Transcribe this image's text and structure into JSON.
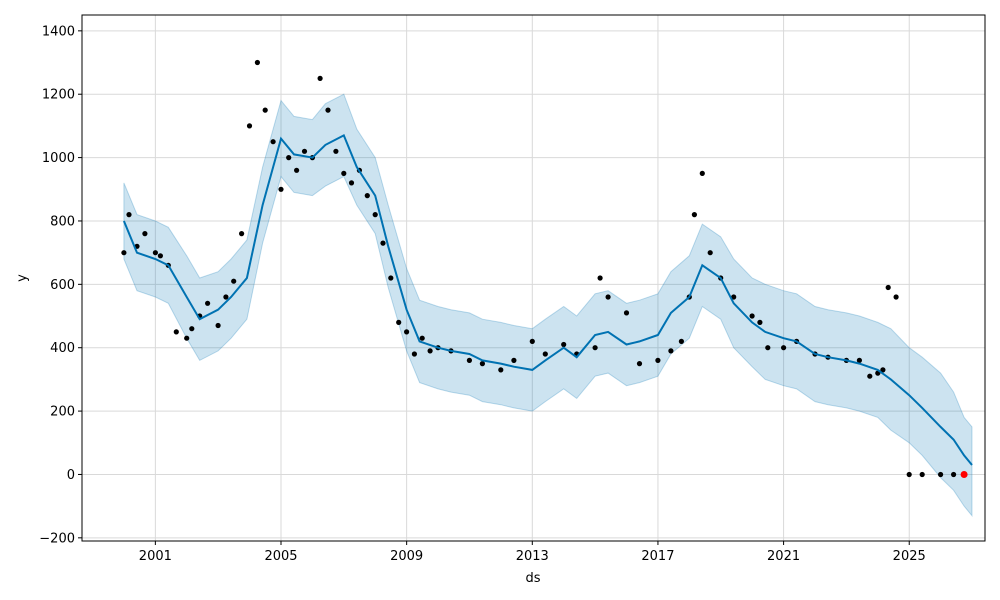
{
  "chart_data": {
    "type": "line",
    "title": "",
    "xlabel": "ds",
    "ylabel": "y",
    "xlim": [
      "1998-09-01",
      "2027-06-01"
    ],
    "ylim": [
      -210,
      1450
    ],
    "x_tick_labels": [
      "2001",
      "2005",
      "2009",
      "2013",
      "2017",
      "2021",
      "2025"
    ],
    "y_tick_labels": [
      "−200",
      "0",
      "200",
      "400",
      "600",
      "800",
      "1000",
      "1200",
      "1400"
    ],
    "grid": true,
    "legend": "none",
    "colors": {
      "forecast": "#0072B2",
      "uncertainty_band": "#0072B2",
      "observed": "#000000",
      "highlight": "#ff0000",
      "grid": "#d9d9d9"
    },
    "series": [
      {
        "role": "forecast",
        "x": [
          "2000-01-01",
          "2000-06-01",
          "2001-01-01",
          "2001-06-01",
          "2002-01-01",
          "2002-06-01",
          "2003-01-01",
          "2003-06-01",
          "2003-12-01",
          "2004-06-01",
          "2005-01-01",
          "2005-06-01",
          "2006-01-01",
          "2006-06-01",
          "2007-01-01",
          "2007-06-01",
          "2008-01-01",
          "2008-06-01",
          "2009-01-01",
          "2009-06-01",
          "2010-01-01",
          "2010-06-01",
          "2011-01-01",
          "2011-06-01",
          "2012-01-01",
          "2012-06-01",
          "2013-01-01",
          "2013-06-01",
          "2014-01-01",
          "2014-06-01",
          "2015-01-01",
          "2015-06-01",
          "2016-01-01",
          "2016-06-01",
          "2017-01-01",
          "2017-06-01",
          "2018-01-01",
          "2018-06-01",
          "2019-01-01",
          "2019-06-01",
          "2020-01-01",
          "2020-06-01",
          "2021-01-01",
          "2021-06-01",
          "2022-01-01",
          "2022-06-01",
          "2023-01-01",
          "2023-06-01",
          "2024-01-01",
          "2024-06-01",
          "2025-01-01",
          "2025-06-01",
          "2026-01-01",
          "2026-06-01",
          "2026-10-01",
          "2027-01-01"
        ],
        "y": [
          800,
          700,
          680,
          660,
          560,
          490,
          520,
          560,
          620,
          850,
          1060,
          1010,
          1000,
          1040,
          1070,
          970,
          880,
          720,
          520,
          420,
          400,
          390,
          380,
          360,
          350,
          340,
          330,
          360,
          400,
          370,
          440,
          450,
          410,
          420,
          440,
          510,
          560,
          660,
          620,
          540,
          480,
          450,
          430,
          420,
          380,
          370,
          360,
          350,
          330,
          300,
          250,
          210,
          150,
          110,
          60,
          30
        ]
      },
      {
        "role": "uncertainty_upper",
        "x": [
          "2000-01-01",
          "2000-06-01",
          "2001-01-01",
          "2001-06-01",
          "2002-01-01",
          "2002-06-01",
          "2003-01-01",
          "2003-06-01",
          "2003-12-01",
          "2004-06-01",
          "2005-01-01",
          "2005-06-01",
          "2006-01-01",
          "2006-06-01",
          "2007-01-01",
          "2007-06-01",
          "2008-01-01",
          "2008-06-01",
          "2009-01-01",
          "2009-06-01",
          "2010-01-01",
          "2010-06-01",
          "2011-01-01",
          "2011-06-01",
          "2012-01-01",
          "2012-06-01",
          "2013-01-01",
          "2013-06-01",
          "2014-01-01",
          "2014-06-01",
          "2015-01-01",
          "2015-06-01",
          "2016-01-01",
          "2016-06-01",
          "2017-01-01",
          "2017-06-01",
          "2018-01-01",
          "2018-06-01",
          "2019-01-01",
          "2019-06-01",
          "2020-01-01",
          "2020-06-01",
          "2021-01-01",
          "2021-06-01",
          "2022-01-01",
          "2022-06-01",
          "2023-01-01",
          "2023-06-01",
          "2024-01-01",
          "2024-06-01",
          "2025-01-01",
          "2025-06-01",
          "2026-01-01",
          "2026-06-01",
          "2026-10-01",
          "2027-01-01"
        ],
        "y": [
          920,
          820,
          800,
          780,
          690,
          620,
          640,
          680,
          740,
          970,
          1180,
          1130,
          1120,
          1170,
          1200,
          1090,
          1000,
          850,
          650,
          550,
          530,
          520,
          510,
          490,
          480,
          470,
          460,
          490,
          530,
          500,
          570,
          580,
          540,
          550,
          570,
          640,
          690,
          790,
          750,
          680,
          620,
          600,
          580,
          570,
          530,
          520,
          510,
          500,
          480,
          460,
          400,
          370,
          320,
          260,
          180,
          150
        ]
      },
      {
        "role": "uncertainty_lower",
        "x": [
          "2000-01-01",
          "2000-06-01",
          "2001-01-01",
          "2001-06-01",
          "2002-01-01",
          "2002-06-01",
          "2003-01-01",
          "2003-06-01",
          "2003-12-01",
          "2004-06-01",
          "2005-01-01",
          "2005-06-01",
          "2006-01-01",
          "2006-06-01",
          "2007-01-01",
          "2007-06-01",
          "2008-01-01",
          "2008-06-01",
          "2009-01-01",
          "2009-06-01",
          "2010-01-01",
          "2010-06-01",
          "2011-01-01",
          "2011-06-01",
          "2012-01-01",
          "2012-06-01",
          "2013-01-01",
          "2013-06-01",
          "2014-01-01",
          "2014-06-01",
          "2015-01-01",
          "2015-06-01",
          "2016-01-01",
          "2016-06-01",
          "2017-01-01",
          "2017-06-01",
          "2018-01-01",
          "2018-06-01",
          "2019-01-01",
          "2019-06-01",
          "2020-01-01",
          "2020-06-01",
          "2021-01-01",
          "2021-06-01",
          "2022-01-01",
          "2022-06-01",
          "2023-01-01",
          "2023-06-01",
          "2024-01-01",
          "2024-06-01",
          "2025-01-01",
          "2025-06-01",
          "2026-01-01",
          "2026-06-01",
          "2026-10-01",
          "2027-01-01"
        ],
        "y": [
          680,
          580,
          560,
          540,
          430,
          360,
          390,
          430,
          490,
          730,
          940,
          890,
          880,
          910,
          940,
          850,
          760,
          590,
          390,
          290,
          270,
          260,
          250,
          230,
          220,
          210,
          200,
          230,
          270,
          240,
          310,
          320,
          280,
          290,
          310,
          380,
          430,
          530,
          490,
          400,
          340,
          300,
          280,
          270,
          230,
          220,
          210,
          200,
          180,
          140,
          100,
          60,
          -10,
          -50,
          -100,
          -130
        ]
      },
      {
        "role": "observed",
        "x": [
          "2000-01-01",
          "2000-03-01",
          "2000-06-01",
          "2000-09-01",
          "2001-01-01",
          "2001-03-01",
          "2001-06-01",
          "2001-09-01",
          "2002-01-01",
          "2002-03-01",
          "2002-06-01",
          "2002-09-01",
          "2003-01-01",
          "2003-04-01",
          "2003-07-01",
          "2003-10-01",
          "2004-01-01",
          "2004-04-01",
          "2004-07-01",
          "2004-10-01",
          "2005-01-01",
          "2005-04-01",
          "2005-07-01",
          "2005-10-01",
          "2006-01-01",
          "2006-04-01",
          "2006-07-01",
          "2006-10-01",
          "2007-01-01",
          "2007-04-01",
          "2007-07-01",
          "2007-10-01",
          "2008-01-01",
          "2008-04-01",
          "2008-07-01",
          "2008-10-01",
          "2009-01-01",
          "2009-04-01",
          "2009-07-01",
          "2009-10-01",
          "2010-01-01",
          "2010-06-01",
          "2011-01-01",
          "2011-06-01",
          "2012-01-01",
          "2012-06-01",
          "2013-01-01",
          "2013-06-01",
          "2014-01-01",
          "2014-06-01",
          "2015-01-01",
          "2015-03-01",
          "2015-06-01",
          "2016-01-01",
          "2016-06-01",
          "2017-01-01",
          "2017-06-01",
          "2017-10-01",
          "2018-01-01",
          "2018-03-01",
          "2018-06-01",
          "2018-09-01",
          "2019-01-01",
          "2019-06-01",
          "2020-01-01",
          "2020-04-01",
          "2020-07-01",
          "2021-01-01",
          "2021-06-01",
          "2022-01-01",
          "2022-06-01",
          "2023-01-01",
          "2023-06-01",
          "2023-10-01",
          "2024-01-01",
          "2024-03-01",
          "2024-05-01",
          "2024-08-01",
          "2025-01-01",
          "2025-06-01",
          "2026-01-01",
          "2026-06-01"
        ],
        "y": [
          700,
          820,
          720,
          760,
          700,
          690,
          660,
          450,
          430,
          460,
          500,
          540,
          470,
          560,
          610,
          760,
          1100,
          1300,
          1150,
          1050,
          900,
          1000,
          960,
          1020,
          1000,
          1250,
          1150,
          1020,
          950,
          920,
          960,
          880,
          820,
          730,
          620,
          480,
          450,
          380,
          430,
          390,
          400,
          390,
          360,
          350,
          330,
          360,
          420,
          380,
          410,
          380,
          400,
          620,
          560,
          510,
          350,
          360,
          390,
          420,
          560,
          820,
          950,
          700,
          620,
          560,
          500,
          480,
          400,
          400,
          420,
          380,
          370,
          360,
          360,
          310,
          320,
          330,
          590,
          560,
          0,
          0,
          0,
          0
        ]
      },
      {
        "role": "highlight",
        "x": [
          "2026-10-01"
        ],
        "y": [
          0
        ]
      }
    ]
  }
}
